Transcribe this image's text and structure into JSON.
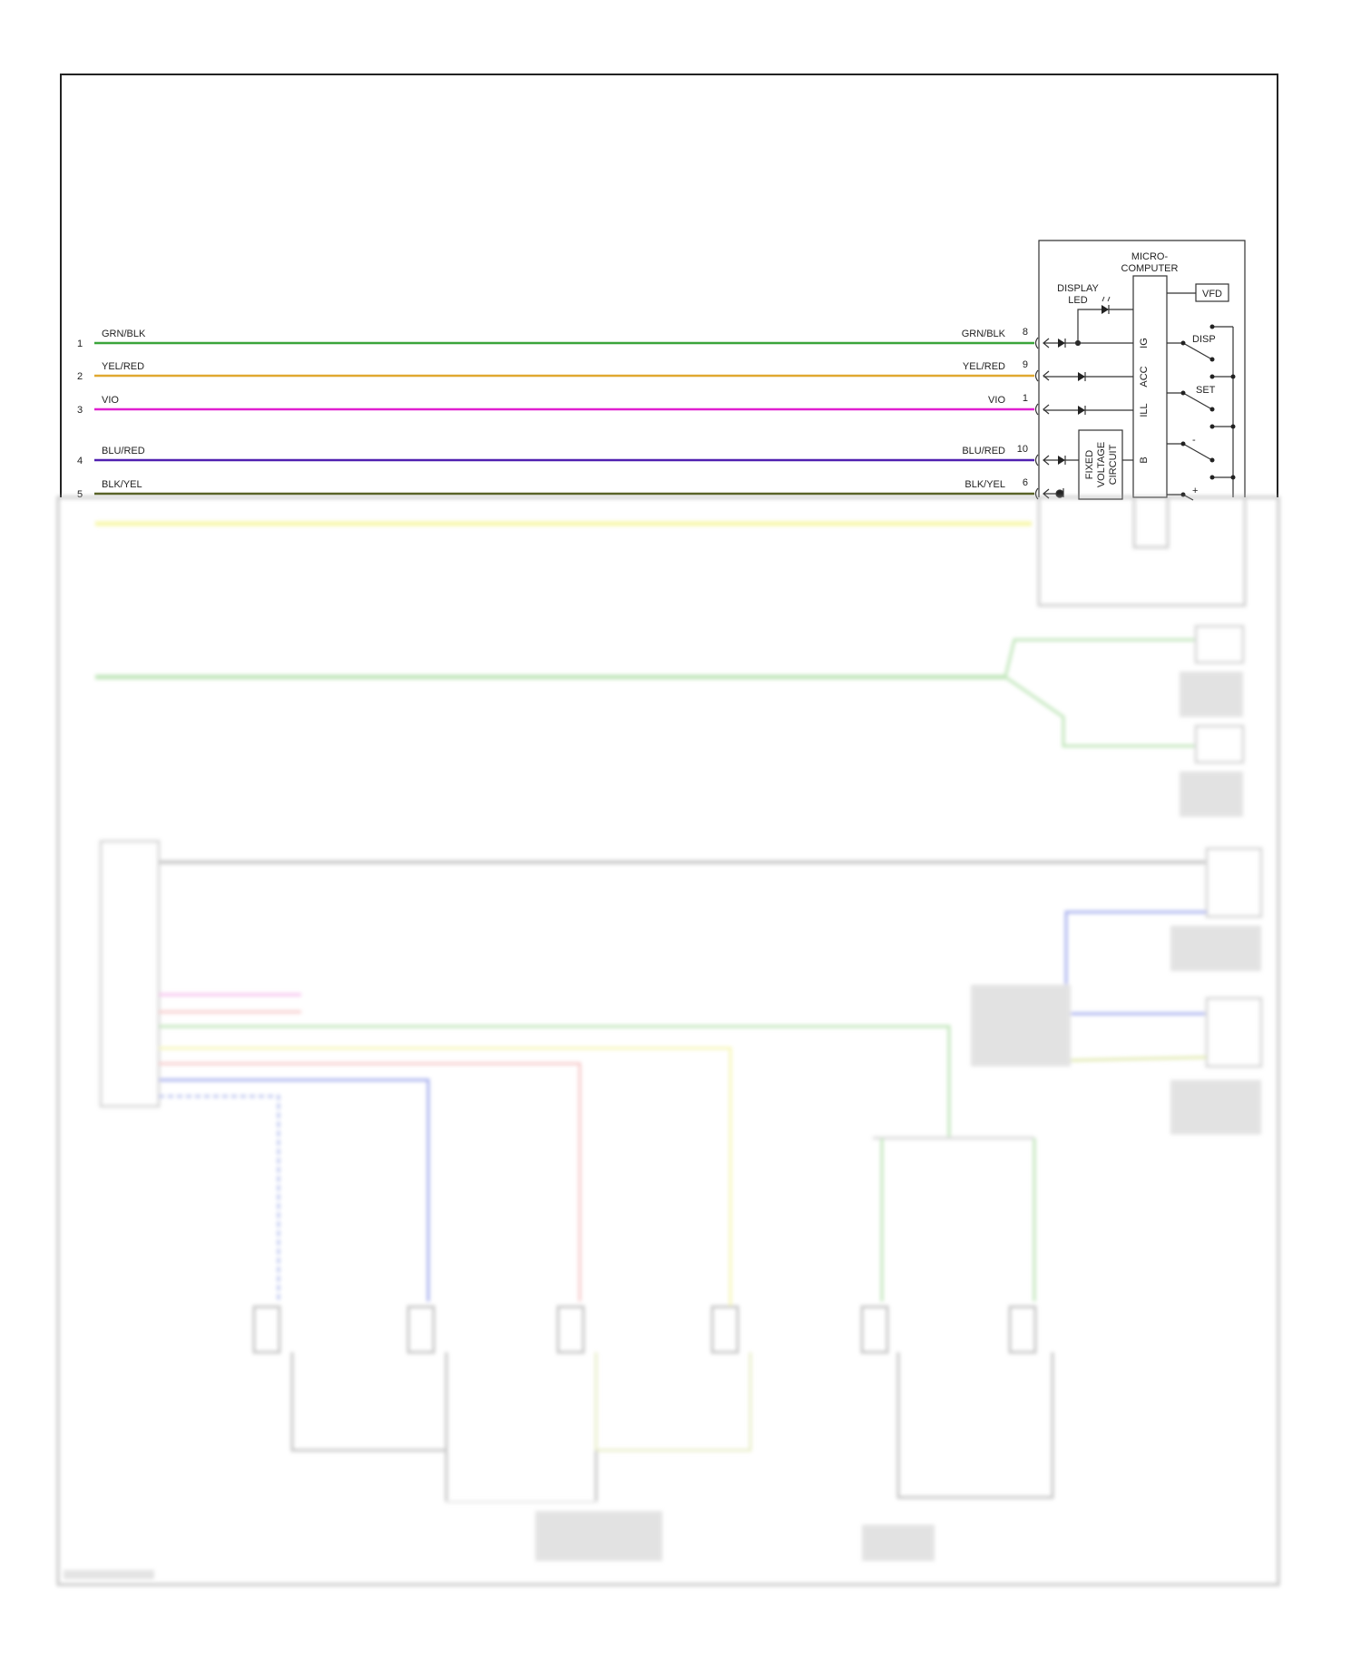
{
  "wires": [
    {
      "pin_left": "1",
      "label_left": "GRN/BLK",
      "label_right": "GRN/BLK",
      "pin_right": "8",
      "color": "#3aa53a",
      "terminal": "IG"
    },
    {
      "pin_left": "2",
      "label_left": "YEL/RED",
      "label_right": "YEL/RED",
      "pin_right": "9",
      "color": "#e0a830",
      "terminal": "ACC"
    },
    {
      "pin_left": "3",
      "label_left": "VIO",
      "label_right": "VIO",
      "pin_right": "1",
      "color": "#e020d0",
      "terminal": "ILL"
    },
    {
      "pin_left": "4",
      "label_left": "BLU/RED",
      "label_right": "BLU/RED",
      "pin_right": "10",
      "color": "#5020b0",
      "terminal": "B"
    },
    {
      "pin_left": "5",
      "label_left": "BLK/YEL",
      "label_right": "BLK/YEL",
      "pin_right": "6",
      "color": "#556020"
    }
  ],
  "module": {
    "microcomputer_line1": "MICRO-",
    "microcomputer_line2": "COMPUTER",
    "display_led_line1": "DISPLAY",
    "display_led_line2": "LED",
    "vfd": "VFD",
    "fixed_voltage_line1": "FIXED",
    "fixed_voltage_line2": "VOLTAGE",
    "fixed_voltage_line3": "CIRCUIT",
    "switches": [
      "DISP",
      "SET",
      "-",
      "+"
    ]
  },
  "colors": {
    "border": "#222222",
    "gray_wire": "#9a9a9a",
    "blue_wire": "#6070e0",
    "green_wire": "#8cd080",
    "yellow_wire": "#f0f080",
    "pink_wire": "#f090e0",
    "red_wire": "#f0a0a0"
  }
}
